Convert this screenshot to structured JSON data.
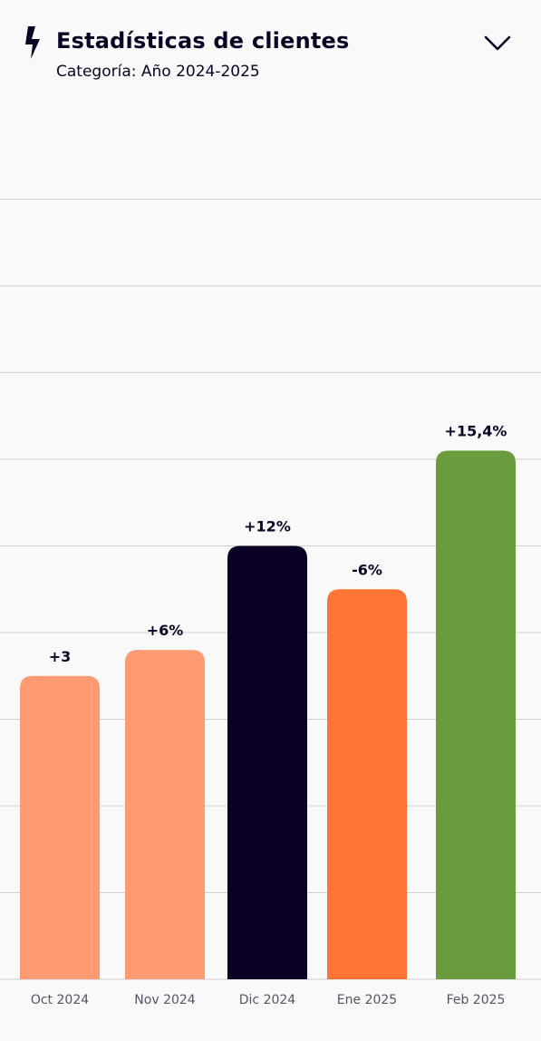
{
  "header": {
    "icon": "lightning-bolt-icon",
    "title": "Estadísticas de clientes",
    "subtitle": "Categoría: Año 2024-2025",
    "toggle_icon": "chevron-down-icon"
  },
  "chart_data": {
    "type": "bar",
    "title": "",
    "xlabel": "",
    "ylabel": "",
    "ylim": [
      0,
      9
    ],
    "grid": true,
    "categories": [
      "Oct 2024",
      "Nov 2024",
      "Dic 2024",
      "Ene 2025",
      "Feb 2025"
    ],
    "values": [
      3.5,
      3.8,
      5.0,
      4.5,
      6.1
    ],
    "data_labels": [
      "+3",
      "+6%",
      "+12%",
      "-6%",
      "+15,4%"
    ],
    "colors": [
      "#ff9a73",
      "#ff9a73",
      "#0a0024",
      "#ff7536",
      "#6a9c3e"
    ]
  },
  "colors": {
    "text": "#0a0524",
    "grid": "#d0d0d0",
    "tick_label": "#555462",
    "background": "#f9f9f9"
  }
}
